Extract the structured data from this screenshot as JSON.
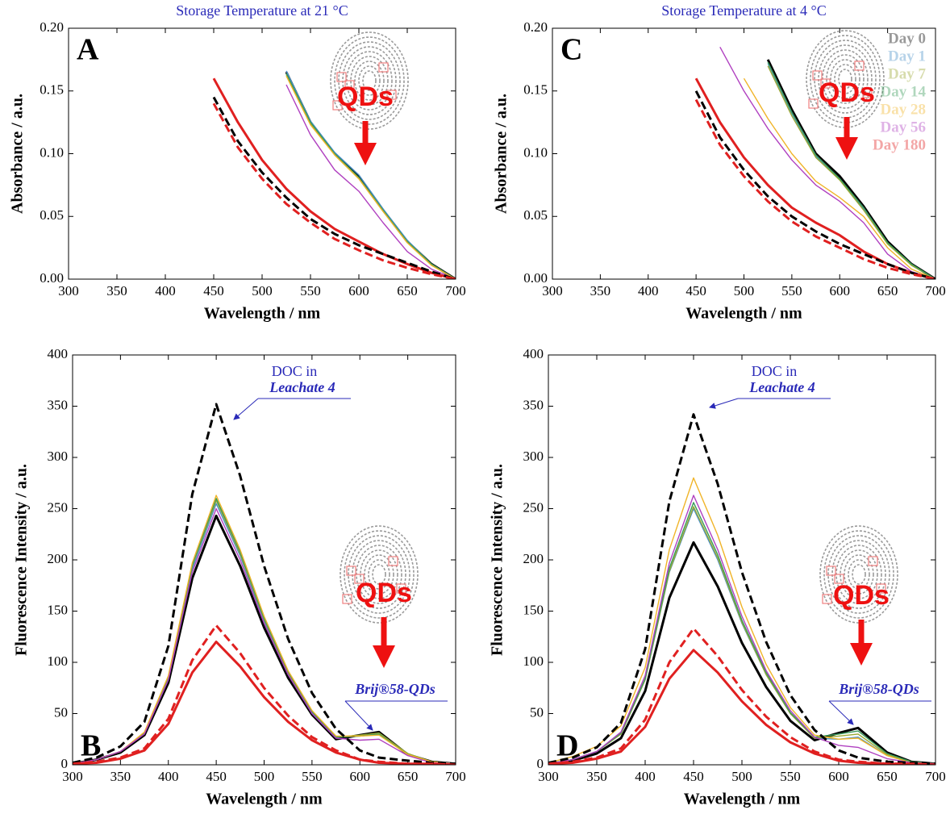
{
  "chart_data": [
    {
      "type": "line",
      "panel_label": "A",
      "title": "Storage Temperature at 21 °C",
      "marker_label": "QDs",
      "xlabel": "Wavelength / nm",
      "ylabel": "Absorbance / a.u.",
      "x": [
        400,
        425,
        450,
        475,
        500,
        525,
        550,
        575,
        600,
        625,
        650,
        675,
        700
      ],
      "xlim": [
        300,
        700
      ],
      "xticks": [
        300,
        350,
        400,
        450,
        500,
        550,
        600,
        650,
        700
      ],
      "ylim": [
        0,
        0.2
      ],
      "yticks": [
        {
          "value": 0,
          "label": "0.00"
        },
        {
          "value": 0.05,
          "label": "0.05"
        },
        {
          "value": 0.1,
          "label": "0.10"
        },
        {
          "value": 0.15,
          "label": "0.15"
        },
        {
          "value": 0.2,
          "label": "0.20"
        }
      ],
      "series": [
        {
          "color": "#000000",
          "bold": true,
          "values": [
            null,
            null,
            null,
            null,
            null,
            0.165,
            0.125,
            0.1,
            0.082,
            0.055,
            0.03,
            0.012,
            0
          ]
        },
        {
          "color": "#4a90c8",
          "values": [
            null,
            null,
            null,
            null,
            null,
            0.166,
            0.126,
            0.101,
            0.083,
            0.056,
            0.031,
            0.012,
            0
          ]
        },
        {
          "color": "#9aa832",
          "values": [
            null,
            null,
            null,
            null,
            null,
            0.163,
            0.124,
            0.099,
            0.08,
            0.054,
            0.03,
            0.012,
            0
          ]
        },
        {
          "color": "#3a9a5a",
          "values": [
            null,
            null,
            null,
            null,
            null,
            0.164,
            0.125,
            0.1,
            0.081,
            0.055,
            0.03,
            0.012,
            0
          ]
        },
        {
          "color": "#f0b428",
          "values": [
            null,
            null,
            null,
            null,
            null,
            0.162,
            0.123,
            0.099,
            0.08,
            0.054,
            0.029,
            0.011,
            0
          ]
        },
        {
          "color": "#b040c0",
          "values": [
            null,
            null,
            null,
            null,
            null,
            0.155,
            0.115,
            0.087,
            0.07,
            0.045,
            0.022,
            0.008,
            0
          ]
        },
        {
          "color": "#e02020",
          "bold": true,
          "values": [
            null,
            null,
            0.16,
            0.125,
            0.095,
            0.072,
            0.054,
            0.04,
            0.03,
            0.02,
            0.012,
            0.005,
            0
          ]
        },
        {
          "color": "#000000",
          "bold": true,
          "dashed": true,
          "values": [
            null,
            null,
            0.145,
            0.11,
            0.085,
            0.065,
            0.048,
            0.036,
            0.027,
            0.02,
            0.013,
            0.006,
            0
          ]
        },
        {
          "color": "#e02020",
          "bold": true,
          "dashed": true,
          "values": [
            null,
            null,
            0.14,
            0.105,
            0.08,
            0.06,
            0.045,
            0.032,
            0.023,
            0.015,
            0.009,
            0.004,
            0
          ]
        }
      ]
    },
    {
      "type": "line",
      "panel_label": "C",
      "title": "Storage Temperature at 4 °C",
      "marker_label": "QDs",
      "legend": "upper right",
      "xlabel": "Wavelength / nm",
      "ylabel": "Absorbance / a.u.",
      "x": [
        400,
        425,
        450,
        475,
        500,
        525,
        550,
        575,
        600,
        625,
        650,
        675,
        700
      ],
      "xlim": [
        300,
        700
      ],
      "xticks": [
        300,
        350,
        400,
        450,
        500,
        550,
        600,
        650,
        700
      ],
      "ylim": [
        0,
        0.2
      ],
      "yticks": [
        {
          "value": 0,
          "label": "0.00"
        },
        {
          "value": 0.05,
          "label": "0.05"
        },
        {
          "value": 0.1,
          "label": "0.10"
        },
        {
          "value": 0.15,
          "label": "0.15"
        },
        {
          "value": 0.2,
          "label": "0.20"
        }
      ],
      "series": [
        {
          "name": "Day 0",
          "color": "#000000",
          "bold": true,
          "values": [
            null,
            null,
            null,
            null,
            null,
            0.175,
            0.135,
            0.1,
            0.082,
            0.058,
            0.03,
            0.012,
            0
          ]
        },
        {
          "name": "Day 1",
          "color": "#4a90c8",
          "values": [
            null,
            null,
            null,
            null,
            null,
            0.172,
            0.132,
            0.098,
            0.08,
            0.056,
            0.029,
            0.011,
            0
          ]
        },
        {
          "name": "Day 7",
          "color": "#9aa832",
          "values": [
            null,
            null,
            null,
            null,
            null,
            0.17,
            0.13,
            0.097,
            0.079,
            0.055,
            0.028,
            0.011,
            0
          ]
        },
        {
          "name": "Day 14",
          "color": "#3a9a5a",
          "values": [
            null,
            null,
            null,
            null,
            null,
            0.173,
            0.133,
            0.099,
            0.08,
            0.057,
            0.029,
            0.012,
            0
          ]
        },
        {
          "name": "Day 28",
          "color": "#f0b428",
          "values": [
            null,
            null,
            null,
            null,
            0.16,
            0.128,
            0.1,
            0.078,
            0.065,
            0.05,
            0.025,
            0.008,
            0
          ]
        },
        {
          "name": "Day 56",
          "color": "#b040c0",
          "values": [
            null,
            null,
            null,
            0.185,
            0.15,
            0.12,
            0.095,
            0.075,
            0.062,
            0.045,
            0.02,
            0.006,
            0
          ]
        },
        {
          "name": "Day 180",
          "color": "#e02020",
          "bold": true,
          "values": [
            null,
            null,
            0.16,
            0.125,
            0.097,
            0.075,
            0.057,
            0.045,
            0.035,
            0.022,
            0.012,
            0.005,
            0
          ]
        },
        {
          "color": "#000000",
          "bold": true,
          "dashed": true,
          "values": [
            null,
            null,
            0.15,
            0.113,
            0.087,
            0.066,
            0.05,
            0.038,
            0.028,
            0.02,
            0.012,
            0.005,
            0
          ]
        },
        {
          "color": "#e02020",
          "bold": true,
          "dashed": true,
          "values": [
            null,
            null,
            0.143,
            0.107,
            0.082,
            0.062,
            0.046,
            0.034,
            0.025,
            0.016,
            0.009,
            0.004,
            0
          ]
        }
      ]
    },
    {
      "type": "line",
      "panel_label": "B",
      "marker_label": "QDs",
      "doc_label": [
        "DOC in",
        "Leachate 4"
      ],
      "peak_label": "Brij®58-QDs",
      "xlabel": "Wavelength / nm",
      "ylabel": "Fluorescence Intensity / a.u.",
      "x": [
        300,
        325,
        350,
        375,
        400,
        425,
        450,
        475,
        500,
        525,
        550,
        575,
        600,
        620,
        650,
        675,
        700
      ],
      "xlim": [
        300,
        700
      ],
      "xticks": [
        300,
        350,
        400,
        450,
        500,
        550,
        600,
        650,
        700
      ],
      "ylim": [
        0,
        400
      ],
      "yticks": [
        0,
        50,
        100,
        150,
        200,
        250,
        300,
        350,
        400
      ],
      "series": [
        {
          "color": "#000000",
          "bold": true,
          "values": [
            1,
            5,
            12,
            29,
            80,
            182,
            243,
            194,
            134,
            85,
            49,
            25,
            29,
            32,
            10,
            3,
            1
          ]
        },
        {
          "color": "#4a90c8",
          "values": [
            1,
            5,
            13,
            31,
            84,
            191,
            255,
            204,
            140,
            89,
            51,
            27,
            28,
            30,
            11,
            2,
            1
          ]
        },
        {
          "color": "#9aa832",
          "values": [
            1,
            5,
            13,
            31,
            85,
            194,
            258,
            206,
            142,
            90,
            52,
            27,
            29,
            31,
            11,
            3,
            1
          ]
        },
        {
          "color": "#3a9a5a",
          "values": [
            1,
            5,
            13,
            31,
            86,
            195,
            260,
            208,
            143,
            91,
            52,
            27,
            28,
            30,
            10,
            3,
            1
          ]
        },
        {
          "color": "#f0b428",
          "values": [
            1,
            5,
            13,
            32,
            87,
            197,
            263,
            210,
            145,
            92,
            53,
            28,
            28,
            29,
            10,
            3,
            1
          ]
        },
        {
          "color": "#b040c0",
          "values": [
            1,
            5,
            13,
            30,
            83,
            188,
            250,
            200,
            138,
            88,
            50,
            26,
            24,
            25,
            9,
            2,
            1
          ]
        },
        {
          "color": "#e02020",
          "bold": true,
          "values": [
            1,
            2,
            6,
            14,
            40,
            90,
            120,
            96,
            66,
            42,
            24,
            12,
            5,
            2,
            1,
            1,
            0
          ]
        },
        {
          "color": "#000000",
          "bold": true,
          "dashed": true,
          "values": [
            2,
            7,
            18,
            42,
            116,
            264,
            352,
            282,
            194,
            123,
            70,
            35,
            14,
            7,
            4,
            2,
            1
          ]
        },
        {
          "color": "#e02020",
          "bold": true,
          "dashed": true,
          "values": [
            1,
            3,
            7,
            16,
            45,
            102,
            136,
            109,
            75,
            48,
            27,
            14,
            5,
            3,
            1,
            1,
            0
          ]
        }
      ]
    },
    {
      "type": "line",
      "panel_label": "D",
      "marker_label": "QDs",
      "doc_label": [
        "DOC in",
        "Leachate 4"
      ],
      "peak_label": "Brij®58-QDs",
      "xlabel": "Wavelength / nm",
      "ylabel": "Fluorescence Intensity / a.u.",
      "x": [
        300,
        325,
        350,
        375,
        400,
        425,
        450,
        475,
        500,
        525,
        550,
        575,
        600,
        620,
        650,
        675,
        700
      ],
      "xlim": [
        300,
        700
      ],
      "xticks": [
        300,
        350,
        400,
        450,
        500,
        550,
        600,
        650,
        700
      ],
      "ylim": [
        0,
        400
      ],
      "yticks": [
        0,
        50,
        100,
        150,
        200,
        250,
        300,
        350,
        400
      ],
      "series": [
        {
          "color": "#000000",
          "bold": true,
          "values": [
            1,
            4,
            11,
            26,
            72,
            163,
            217,
            174,
            119,
            76,
            43,
            24,
            31,
            36,
            12,
            3,
            1
          ]
        },
        {
          "color": "#4a90c8",
          "values": [
            1,
            5,
            13,
            30,
            83,
            188,
            250,
            200,
            138,
            88,
            50,
            26,
            25,
            27,
            9,
            2,
            1
          ]
        },
        {
          "color": "#9aa832",
          "values": [
            1,
            5,
            13,
            30,
            83,
            189,
            252,
            202,
            139,
            88,
            50,
            26,
            28,
            30,
            10,
            3,
            1
          ]
        },
        {
          "color": "#3a9a5a",
          "values": [
            1,
            5,
            13,
            31,
            84,
            192,
            256,
            205,
            141,
            90,
            51,
            27,
            30,
            33,
            11,
            3,
            1
          ]
        },
        {
          "color": "#f0b428",
          "values": [
            2,
            8,
            18,
            38,
            95,
            210,
            280,
            224,
            154,
            98,
            56,
            29,
            25,
            26,
            9,
            2,
            1
          ]
        },
        {
          "color": "#b040c0",
          "values": [
            1,
            5,
            13,
            32,
            87,
            197,
            263,
            210,
            145,
            92,
            53,
            27,
            19,
            17,
            6,
            2,
            1
          ]
        },
        {
          "color": "#e02020",
          "bold": true,
          "values": [
            1,
            2,
            6,
            13,
            37,
            84,
            112,
            90,
            62,
            39,
            22,
            11,
            4,
            2,
            1,
            1,
            0
          ]
        },
        {
          "color": "#000000",
          "bold": true,
          "dashed": true,
          "values": [
            2,
            7,
            17,
            41,
            113,
            257,
            342,
            274,
            188,
            120,
            68,
            34,
            14,
            7,
            3,
            2,
            1
          ]
        },
        {
          "color": "#e02020",
          "bold": true,
          "dashed": true,
          "values": [
            1,
            3,
            7,
            16,
            44,
            100,
            133,
            106,
            73,
            47,
            27,
            13,
            5,
            3,
            1,
            1,
            0
          ]
        }
      ]
    }
  ]
}
